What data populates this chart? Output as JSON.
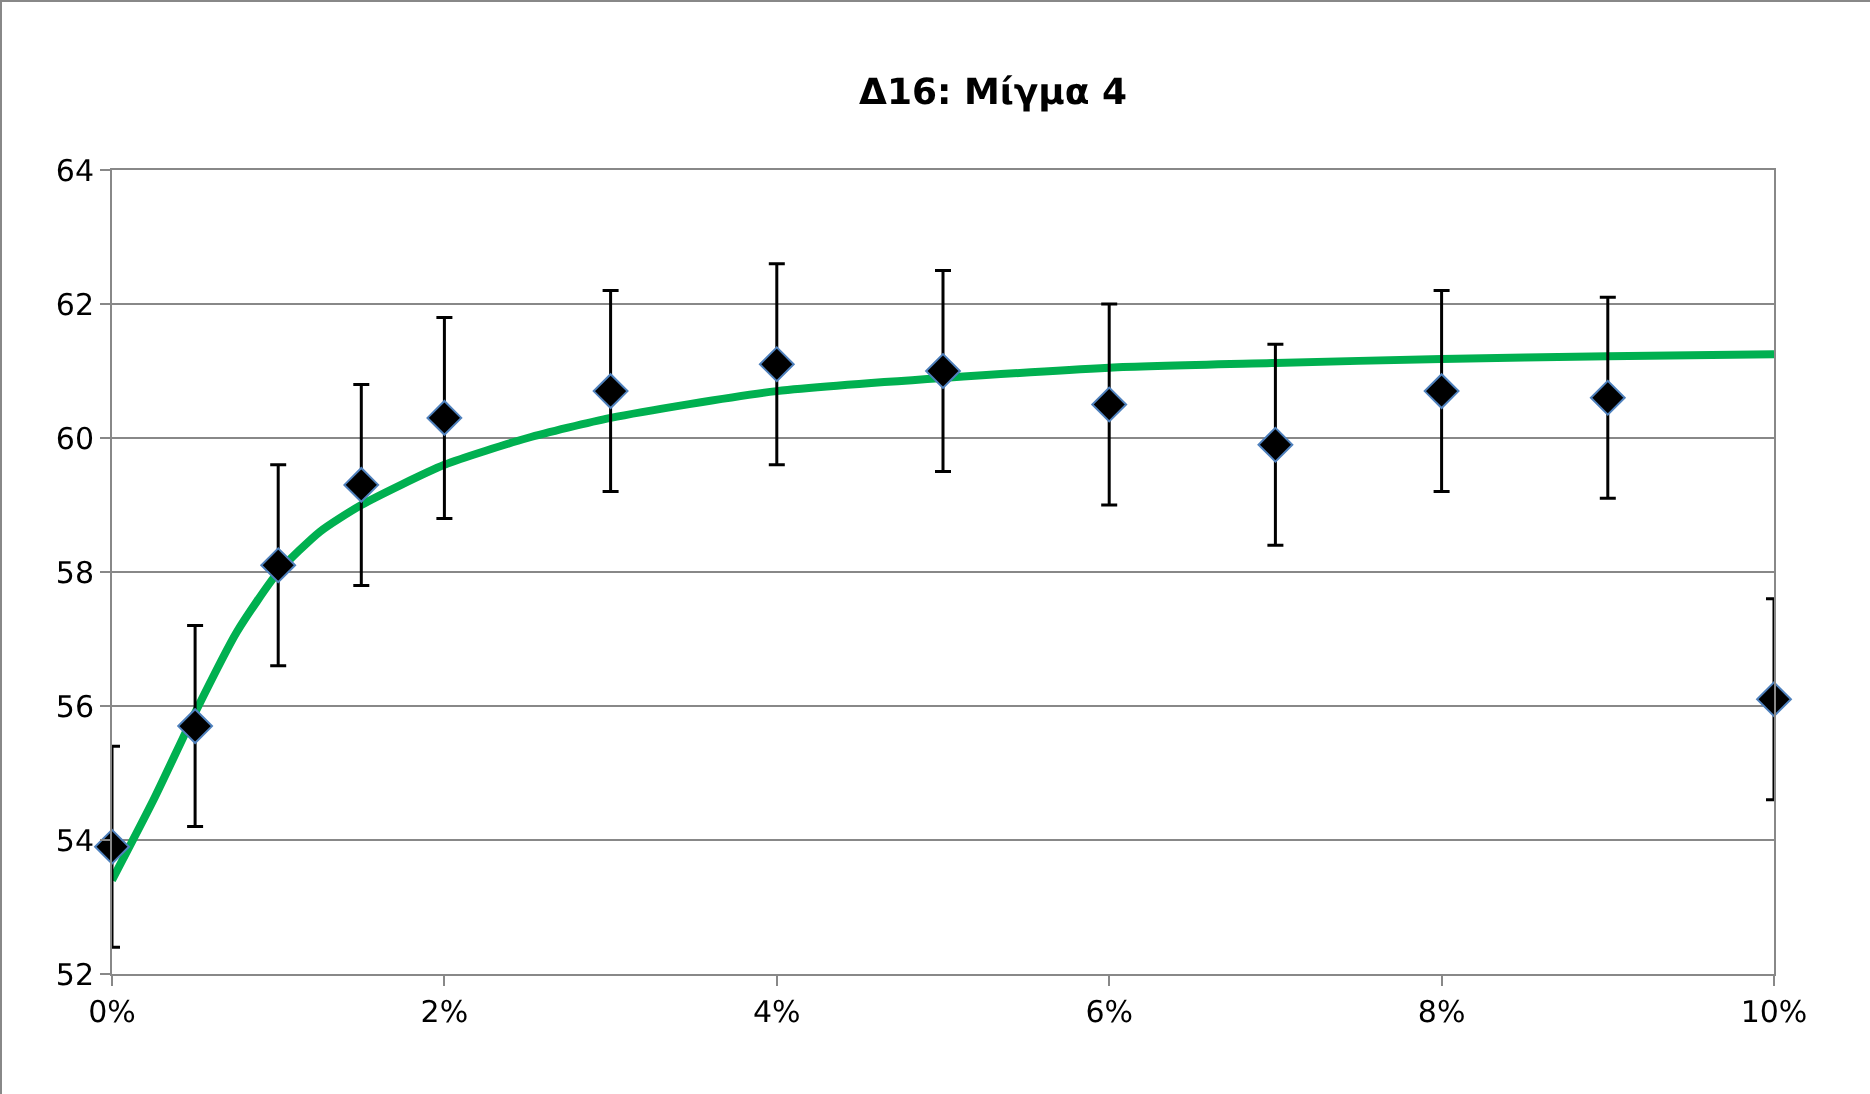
{
  "chart_data": {
    "type": "scatter",
    "title": "Δ16: Μίγμα 4",
    "xlim": [
      0,
      10
    ],
    "ylim": [
      52,
      64
    ],
    "xticks": [
      {
        "value": 0,
        "label": "0%"
      },
      {
        "value": 2,
        "label": "2%"
      },
      {
        "value": 4,
        "label": "4%"
      },
      {
        "value": 6,
        "label": "6%"
      },
      {
        "value": 8,
        "label": "8%"
      },
      {
        "value": 10,
        "label": "10%"
      }
    ],
    "yticks": [
      52,
      54,
      56,
      58,
      60,
      62,
      64
    ],
    "grid": "y",
    "legend": false,
    "series": [
      {
        "marker": "diamond",
        "color": "#000000",
        "x": [
          0,
          0.5,
          1,
          1.5,
          2,
          3,
          4,
          5,
          6,
          7,
          8,
          9,
          10
        ],
        "values": [
          53.9,
          55.7,
          58.1,
          59.3,
          60.3,
          60.7,
          61.1,
          61.0,
          60.5,
          59.9,
          60.7,
          60.6,
          56.1
        ],
        "errors": [
          1.5,
          1.5,
          1.5,
          1.5,
          1.5,
          1.5,
          1.5,
          1.5,
          1.5,
          1.5,
          1.5,
          1.5,
          1.5
        ]
      },
      {
        "type": "line",
        "marker": "none",
        "color": "#00b050",
        "line_style": "solid",
        "x": [
          0,
          0.25,
          0.5,
          0.75,
          1,
          1.25,
          1.5,
          2,
          2.5,
          3,
          4,
          6,
          7,
          8,
          9,
          10
        ],
        "values": [
          53.4,
          54.6,
          55.9,
          57.1,
          58.0,
          58.6,
          59.0,
          59.6,
          60.0,
          60.3,
          60.7,
          61.05,
          61.12,
          61.18,
          61.22,
          61.25
        ]
      }
    ]
  }
}
